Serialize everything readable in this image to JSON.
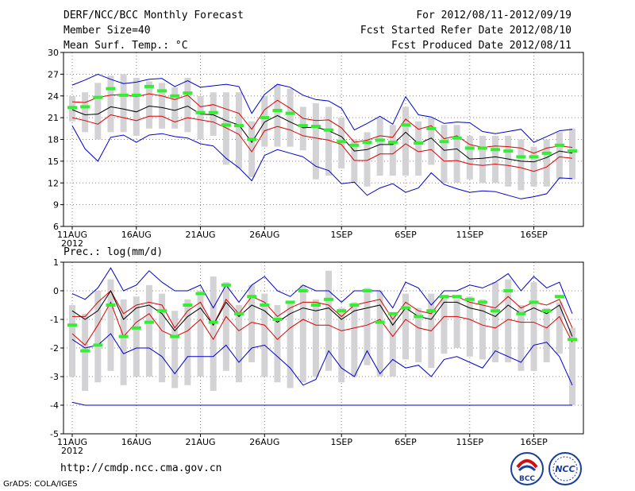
{
  "header": {
    "title": "DERF/NCC/BCC Monthly Forecast",
    "member_size": "Member Size=40",
    "variable": "Mean Surf. Temp.: °C",
    "forecast_range": "For 2012/08/11-2012/09/19",
    "refer_date": "Fcst Started Refer Date 2012/08/10",
    "produced_date": "Fcst Produced Date 2012/08/11"
  },
  "footer": {
    "url": "http://cmdp.ncc.cma.gov.cn",
    "credit": "GrADS: COLA/IGES",
    "logo_left_text": "BCC",
    "logo_right_text": "NCC"
  },
  "colors": {
    "mean": "#000000",
    "spread": "#dd0000",
    "extreme": "#0000cc",
    "box": "#d3d3d6",
    "obs": "#33ee33",
    "grid": "#888888"
  },
  "chart_data": [
    {
      "type": "line",
      "title": "Mean Surf. Temp.: °C",
      "x": [
        1,
        2,
        3,
        4,
        5,
        6,
        7,
        8,
        9,
        10,
        11,
        12,
        13,
        14,
        15,
        16,
        17,
        18,
        19,
        20,
        21,
        22,
        23,
        24,
        25,
        26,
        27,
        28,
        29,
        30,
        31,
        32,
        33,
        34,
        35,
        36,
        37,
        38,
        39,
        40
      ],
      "xtick_labels": [
        "11AUG",
        "16AUG",
        "21AUG",
        "26AUG",
        "1SEP",
        "6SEP",
        "11SEP",
        "16SEP"
      ],
      "xtick_positions": [
        1,
        6,
        11,
        16,
        22,
        27,
        32,
        37
      ],
      "year_label": "2012",
      "ylim": [
        6,
        30
      ],
      "yticks": [
        6,
        9,
        12,
        15,
        18,
        21,
        24,
        27,
        30
      ],
      "series": [
        {
          "name": "ensemble max",
          "role": "extreme",
          "values": [
            25.5,
            26.2,
            27.0,
            26.3,
            25.7,
            25.9,
            26.3,
            26.4,
            25.3,
            26.1,
            25.2,
            25.4,
            25.6,
            25.3,
            21.6,
            24.2,
            25.6,
            25.2,
            24.1,
            23.5,
            23.3,
            22.3,
            19.3,
            20.2,
            21.2,
            20.1,
            23.9,
            21.4,
            21.1,
            20.2,
            20.4,
            20.3,
            19.1,
            18.8,
            19.1,
            19.4,
            17.6,
            18.4,
            19.2,
            19.4
          ]
        },
        {
          "name": "upper spread",
          "role": "spread",
          "values": [
            23.2,
            23.1,
            23.8,
            24.1,
            24.2,
            23.9,
            24.3,
            24.0,
            23.5,
            24.1,
            22.5,
            22.8,
            22.2,
            21.6,
            19.4,
            22.1,
            23.4,
            22.3,
            20.9,
            20.6,
            20.7,
            19.6,
            17.6,
            17.9,
            18.5,
            18.3,
            20.8,
            19.4,
            19.9,
            18.1,
            18.5,
            17.3,
            16.9,
            17.1,
            17.0,
            16.8,
            16.1,
            16.8,
            17.1,
            16.9
          ]
        },
        {
          "name": "ensemble mean",
          "role": "mean",
          "values": [
            22.1,
            21.4,
            21.5,
            22.5,
            22.2,
            21.8,
            22.6,
            22.4,
            22.0,
            22.6,
            21.5,
            21.4,
            20.6,
            20.0,
            17.6,
            20.4,
            21.3,
            20.4,
            19.6,
            19.7,
            19.2,
            18.4,
            16.4,
            16.6,
            17.3,
            17.3,
            19.0,
            17.4,
            18.2,
            16.5,
            16.7,
            15.3,
            15.4,
            15.6,
            15.3,
            15.0,
            14.9,
            15.5,
            16.4,
            16.1
          ]
        },
        {
          "name": "lower spread",
          "role": "spread",
          "values": [
            21.0,
            20.6,
            20.1,
            21.4,
            21.0,
            20.6,
            21.2,
            21.2,
            20.4,
            21.0,
            20.7,
            20.4,
            19.6,
            18.7,
            16.3,
            19.2,
            19.8,
            19.3,
            18.5,
            18.2,
            17.9,
            17.3,
            15.1,
            15.1,
            16.0,
            16.0,
            17.4,
            16.3,
            16.6,
            15.0,
            15.1,
            14.6,
            14.4,
            14.6,
            14.4,
            14.1,
            13.6,
            14.2,
            15.6,
            15.4
          ]
        },
        {
          "name": "ensemble min",
          "role": "extreme",
          "values": [
            19.9,
            16.7,
            15.0,
            18.3,
            18.6,
            17.6,
            18.6,
            18.8,
            18.4,
            18.2,
            17.4,
            17.1,
            15.4,
            14.1,
            12.3,
            15.8,
            16.6,
            16.1,
            15.6,
            14.3,
            13.7,
            11.9,
            12.1,
            10.3,
            11.3,
            11.9,
            10.7,
            11.3,
            13.4,
            11.8,
            11.2,
            10.7,
            10.9,
            10.8,
            10.3,
            9.8,
            10.1,
            10.5,
            12.7,
            12.6
          ]
        },
        {
          "name": "box upper",
          "role": "box",
          "values": [
            24.0,
            24.5,
            25.8,
            26.8,
            27.0,
            26.5,
            26.0,
            25.8,
            25.2,
            26.5,
            24.0,
            24.5,
            24.5,
            24.5,
            20.5,
            24.0,
            25.5,
            25.0,
            22.5,
            23.0,
            22.5,
            21.0,
            18.0,
            19.0,
            21.0,
            20.0,
            22.5,
            20.5,
            21.0,
            20.0,
            20.0,
            18.5,
            18.5,
            18.5,
            18.5,
            18.0,
            17.0,
            18.0,
            19.0,
            19.5
          ]
        },
        {
          "name": "box lower",
          "role": "box",
          "values": [
            20.5,
            19.0,
            18.0,
            19.0,
            19.0,
            18.5,
            19.5,
            19.5,
            19.5,
            19.0,
            18.0,
            18.5,
            14.5,
            14.0,
            12.8,
            17.0,
            17.0,
            17.0,
            16.5,
            12.5,
            13.0,
            14.0,
            12.0,
            11.5,
            13.0,
            13.0,
            13.0,
            13.0,
            14.5,
            12.0,
            12.0,
            12.5,
            12.0,
            12.0,
            11.5,
            11.0,
            11.5,
            11.5,
            12.5,
            12.5
          ]
        },
        {
          "name": "observed/climatology",
          "role": "obs",
          "values": [
            22.4,
            22.5,
            23.8,
            25.0,
            24.1,
            24.1,
            25.3,
            24.7,
            24.0,
            24.4,
            21.7,
            21.7,
            20.0,
            19.9,
            18.0,
            21.0,
            22.0,
            21.6,
            19.9,
            19.8,
            19.3,
            17.7,
            17.2,
            17.6,
            17.9,
            17.6,
            20.0,
            17.5,
            19.5,
            17.7,
            18.2,
            16.8,
            16.8,
            16.6,
            16.4,
            15.6,
            15.6,
            16.1,
            17.2,
            16.4
          ]
        }
      ]
    },
    {
      "type": "line",
      "title": "Prec.: log(mm/d)",
      "x": [
        1,
        2,
        3,
        4,
        5,
        6,
        7,
        8,
        9,
        10,
        11,
        12,
        13,
        14,
        15,
        16,
        17,
        18,
        19,
        20,
        21,
        22,
        23,
        24,
        25,
        26,
        27,
        28,
        29,
        30,
        31,
        32,
        33,
        34,
        35,
        36,
        37,
        38,
        39,
        40
      ],
      "xtick_labels": [
        "11AUG",
        "16AUG",
        "21AUG",
        "26AUG",
        "1SEP",
        "6SEP",
        "11SEP",
        "16SEP"
      ],
      "xtick_positions": [
        1,
        6,
        11,
        16,
        22,
        27,
        32,
        37
      ],
      "year_label": "2012",
      "ylim": [
        -5,
        1
      ],
      "yticks": [
        -5,
        -4,
        -3,
        -2,
        -1,
        0,
        1
      ],
      "series": [
        {
          "name": "ensemble max",
          "role": "extreme",
          "values": [
            -0.1,
            -0.3,
            0.1,
            0.8,
            0.0,
            0.2,
            0.7,
            0.3,
            0.0,
            0.0,
            0.2,
            -0.6,
            0.2,
            -0.4,
            0.2,
            0.5,
            0.0,
            -0.2,
            0.2,
            0.0,
            0.0,
            -0.4,
            0.0,
            0.0,
            0.0,
            -0.6,
            0.3,
            0.1,
            -0.5,
            0.0,
            0.0,
            0.2,
            0.1,
            0.3,
            0.6,
            0.0,
            0.5,
            0.1,
            0.3,
            -0.8
          ]
        },
        {
          "name": "upper spread",
          "role": "spread",
          "values": [
            -0.9,
            -0.9,
            -0.4,
            0.0,
            -0.8,
            -0.5,
            -0.4,
            -0.5,
            -1.3,
            -0.7,
            -0.4,
            -1.2,
            -0.3,
            -0.8,
            -0.2,
            -0.4,
            -0.9,
            -0.6,
            -0.4,
            -0.4,
            -0.5,
            -0.9,
            -0.5,
            -0.4,
            -0.3,
            -1.0,
            -0.4,
            -0.7,
            -0.8,
            -0.2,
            -0.2,
            -0.4,
            -0.5,
            -0.6,
            -0.2,
            -0.6,
            -0.4,
            -0.5,
            -0.3,
            -1.3
          ]
        },
        {
          "name": "ensemble mean",
          "role": "mean",
          "values": [
            -0.7,
            -1.0,
            -0.7,
            0.0,
            -1.0,
            -0.6,
            -0.5,
            -0.8,
            -1.4,
            -0.9,
            -0.6,
            -1.2,
            -0.4,
            -0.9,
            -0.5,
            -0.7,
            -1.1,
            -0.8,
            -0.6,
            -0.7,
            -0.6,
            -1.0,
            -0.7,
            -0.6,
            -0.5,
            -1.2,
            -0.6,
            -0.9,
            -1.0,
            -0.4,
            -0.4,
            -0.6,
            -0.7,
            -0.9,
            -0.5,
            -0.8,
            -0.6,
            -0.8,
            -0.5,
            -1.6
          ]
        },
        {
          "name": "lower spread",
          "role": "spread",
          "values": [
            -1.5,
            -1.9,
            -1.2,
            -0.4,
            -1.6,
            -1.1,
            -0.8,
            -1.4,
            -1.6,
            -1.4,
            -1.0,
            -1.7,
            -0.9,
            -1.4,
            -1.1,
            -1.2,
            -1.7,
            -1.3,
            -1.0,
            -1.2,
            -1.2,
            -1.4,
            -1.3,
            -1.2,
            -1.0,
            -1.6,
            -1.0,
            -1.3,
            -1.4,
            -0.9,
            -0.9,
            -1.0,
            -1.2,
            -1.3,
            -1.0,
            -1.1,
            -1.1,
            -1.3,
            -0.9,
            -1.8
          ]
        },
        {
          "name": "ensemble min",
          "role": "extreme",
          "values": [
            -1.7,
            -2.0,
            -1.9,
            -1.5,
            -2.2,
            -2.0,
            -2.0,
            -2.3,
            -2.9,
            -2.3,
            -2.3,
            -2.3,
            -1.9,
            -2.5,
            -2.0,
            -1.9,
            -2.3,
            -2.7,
            -3.3,
            -3.1,
            -2.1,
            -2.7,
            -3.0,
            -2.1,
            -2.9,
            -2.4,
            -2.7,
            -2.6,
            -3.0,
            -2.4,
            -2.3,
            -2.5,
            -2.7,
            -2.1,
            -2.3,
            -2.5,
            -1.9,
            -1.8,
            -2.3,
            -3.3
          ]
        },
        {
          "name": "ensemble lower bound",
          "role": "bound",
          "values": [
            -3.9,
            -4.0,
            -4.0,
            -4.0,
            -4.0,
            -4.0,
            -4.0,
            -4.0,
            -4.0,
            -4.0,
            -4.0,
            -4.0,
            -4.0,
            -4.0,
            -4.0,
            -4.0,
            -4.0,
            -4.0,
            -4.0,
            -4.0,
            -4.0,
            -4.0,
            -4.0,
            -4.0,
            -4.0,
            -4.0,
            -4.0,
            -4.0,
            -4.0,
            -4.0,
            -4.0,
            -4.0,
            -4.0,
            -4.0,
            -4.0,
            -4.0,
            -4.0,
            -4.0,
            -4.0,
            -4.0
          ]
        },
        {
          "name": "box upper",
          "role": "box",
          "values": [
            -0.5,
            -0.8,
            0.0,
            0.4,
            -0.3,
            -0.2,
            0.2,
            -0.1,
            -0.7,
            -0.3,
            0.0,
            0.5,
            0.3,
            -0.5,
            0.2,
            -0.1,
            -0.5,
            -0.4,
            0.2,
            -0.3,
            0.7,
            -0.6,
            -0.4,
            0.1,
            0.0,
            -0.8,
            -0.1,
            -0.6,
            -0.1,
            -0.2,
            -0.3,
            -0.2,
            -0.3,
            0.3,
            0.4,
            -0.5,
            0.3,
            -0.6,
            -0.4,
            -1.3
          ]
        },
        {
          "name": "box lower",
          "role": "box",
          "values": [
            -3.0,
            -3.5,
            -3.2,
            -2.8,
            -3.3,
            -3.0,
            -3.0,
            -3.2,
            -3.4,
            -3.3,
            -3.0,
            -3.5,
            -2.8,
            -3.2,
            -2.5,
            -3.0,
            -3.2,
            -3.4,
            -3.2,
            -3.0,
            -2.8,
            -3.2,
            -3.0,
            -2.6,
            -3.0,
            -3.0,
            -2.4,
            -2.5,
            -2.7,
            -2.2,
            -2.0,
            -2.3,
            -2.4,
            -2.5,
            -2.5,
            -2.8,
            -2.8,
            -2.5,
            -2.2,
            -4.0
          ]
        },
        {
          "name": "observed/climatology",
          "role": "obs",
          "values": [
            -1.2,
            -2.1,
            -1.9,
            -0.5,
            -1.6,
            -1.3,
            -1.1,
            -0.7,
            -1.6,
            -0.5,
            -0.1,
            -1.1,
            0.2,
            -0.8,
            -0.2,
            -0.5,
            -1.0,
            -0.4,
            0.0,
            -0.5,
            -0.3,
            -0.7,
            -0.5,
            0.0,
            -1.1,
            -0.8,
            -0.6,
            -0.9,
            -0.7,
            -0.2,
            -0.2,
            -0.3,
            -0.4,
            -0.7,
            0.0,
            -0.8,
            -0.4,
            -0.7,
            -0.2,
            -1.7
          ]
        }
      ]
    }
  ]
}
